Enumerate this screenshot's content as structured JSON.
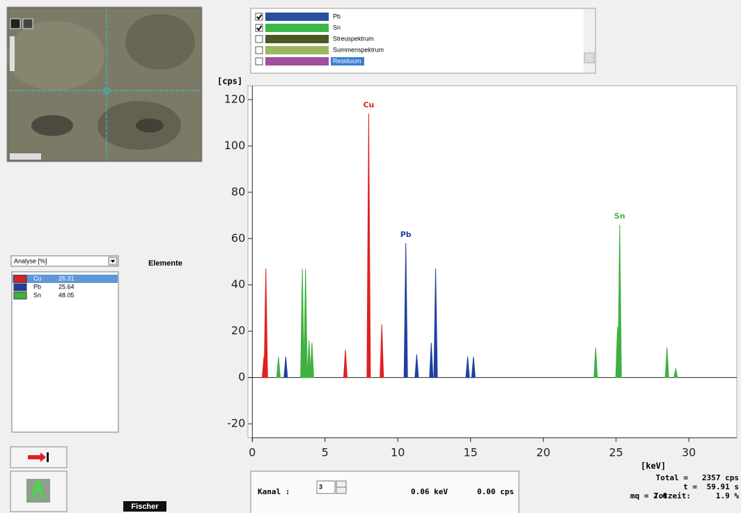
{
  "spectrum_legend": [
    {
      "name": "Pb",
      "color": "#2a4fa0",
      "checked": true
    },
    {
      "name": "Sn",
      "color": "#3cb84a",
      "checked": true
    },
    {
      "name": "Streuspektrum",
      "color": "#4a5a20",
      "checked": false
    },
    {
      "name": "Summenspektrum",
      "color": "#9ab860",
      "checked": false
    },
    {
      "name": "Residuum",
      "color": "#a050a0",
      "checked": false
    }
  ],
  "analysis": {
    "dropdown": "Analyse [%]",
    "heading": "Elemente",
    "rows": [
      {
        "name": "Cu",
        "color": "#e02020",
        "value": 26.31
      },
      {
        "name": "Pb",
        "color": "#2040a0",
        "value": 25.64
      },
      {
        "name": "Sn",
        "color": "#40b040",
        "value": 48.05
      }
    ]
  },
  "chart_data": {
    "type": "stem",
    "y_label": "[cps]",
    "x_label": "[keV]",
    "x": [
      0.8,
      0.93,
      1.8,
      2.3,
      3.44,
      3.66,
      3.9,
      4.1,
      6.4,
      8.0,
      8.9,
      10.55,
      11.3,
      12.3,
      12.6,
      14.8,
      15.2,
      23.6,
      25.1,
      25.25,
      28.5,
      29.1
    ],
    "series": [
      {
        "name": "Cu",
        "color": "#e02020",
        "values": [
          9,
          47,
          null,
          null,
          null,
          null,
          null,
          null,
          12,
          114,
          23,
          null,
          null,
          null,
          null,
          null,
          null,
          null,
          null,
          null,
          null,
          null
        ]
      },
      {
        "name": "Pb",
        "color": "#2040a0",
        "values": [
          null,
          null,
          null,
          9,
          null,
          null,
          null,
          null,
          null,
          null,
          null,
          58,
          10,
          15,
          47,
          9,
          9,
          null,
          null,
          null,
          null,
          null
        ]
      },
      {
        "name": "Sn",
        "color": "#40b040",
        "values": [
          null,
          null,
          9,
          null,
          47,
          47,
          16,
          15,
          null,
          null,
          null,
          null,
          null,
          null,
          null,
          null,
          null,
          13,
          22,
          66,
          13,
          4
        ]
      }
    ],
    "xlim": [
      -0.3,
      33.3
    ],
    "ylim": [
      -26,
      126
    ],
    "xticks": [
      0,
      5,
      10,
      15,
      20,
      25,
      30
    ],
    "yticks": [
      -20,
      0,
      20,
      40,
      60,
      80,
      100,
      120
    ]
  },
  "status": {
    "total_label": "Total =",
    "total_value": "2357 cps",
    "t_label": "t =",
    "t_value": "59.91 s",
    "mq": "mq = 2.6",
    "totzeit_label": "Totzeit:",
    "totzeit_value": "1.9 %"
  },
  "channel": {
    "label": "Kanal :",
    "value": 3,
    "energy": "0.06 keV",
    "rate": "0.00 cps"
  },
  "logo": "Fischer"
}
